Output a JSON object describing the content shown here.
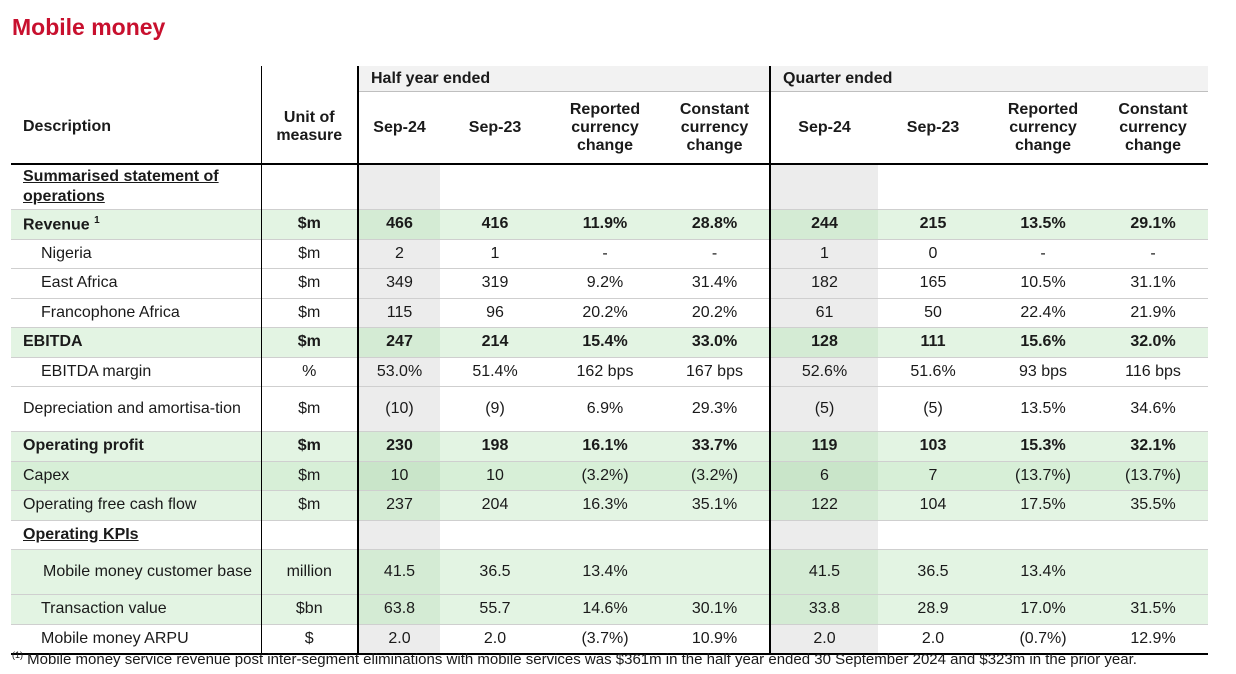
{
  "title": "Mobile money",
  "header": {
    "description": "Description",
    "unit": "Unit of measure",
    "group_half": "Half year ended",
    "group_quarter": "Quarter ended",
    "sep24": "Sep-24",
    "sep23": "Sep-23",
    "reported": "Reported currency change",
    "constant": "Constant currency change"
  },
  "rows": {
    "summary_heading": "Summarised statement of operations",
    "revenue": {
      "label": "Revenue",
      "sup": "1",
      "unit": "$m",
      "v": [
        "466",
        "416",
        "11.9%",
        "28.8%",
        "244",
        "215",
        "13.5%",
        "29.1%"
      ]
    },
    "nigeria": {
      "label": "Nigeria",
      "unit": "$m",
      "v": [
        "2",
        "1",
        "-",
        "-",
        "1",
        "0",
        "-",
        "-"
      ]
    },
    "east_africa": {
      "label": "East Africa",
      "unit": "$m",
      "v": [
        "349",
        "319",
        "9.2%",
        "31.4%",
        "182",
        "165",
        "10.5%",
        "31.1%"
      ]
    },
    "francophone": {
      "label": "Francophone Africa",
      "unit": "$m",
      "v": [
        "115",
        "96",
        "20.2%",
        "20.2%",
        "61",
        "50",
        "22.4%",
        "21.9%"
      ]
    },
    "ebitda": {
      "label": "EBITDA",
      "unit": "$m",
      "v": [
        "247",
        "214",
        "15.4%",
        "33.0%",
        "128",
        "111",
        "15.6%",
        "32.0%"
      ]
    },
    "ebitda_margin": {
      "label": "EBITDA margin",
      "unit": "%",
      "v": [
        "53.0%",
        "51.4%",
        "162 bps",
        "167 bps",
        "52.6%",
        "51.6%",
        "93 bps",
        "116 bps"
      ]
    },
    "depreciation": {
      "label": "Depreciation and amortisa-tion",
      "unit": "$m",
      "v": [
        "(10)",
        "(9)",
        "6.9%",
        "29.3%",
        "(5)",
        "(5)",
        "13.5%",
        "34.6%"
      ]
    },
    "operating_profit": {
      "label": "Operating profit",
      "unit": "$m",
      "v": [
        "230",
        "198",
        "16.1%",
        "33.7%",
        "119",
        "103",
        "15.3%",
        "32.1%"
      ]
    },
    "capex": {
      "label": "Capex",
      "unit": "$m",
      "v": [
        "10",
        "10",
        "(3.2%)",
        "(3.2%)",
        "6",
        "7",
        "(13.7%)",
        "(13.7%)"
      ]
    },
    "ofcf": {
      "label": "Operating free cash flow",
      "unit": "$m",
      "v": [
        "237",
        "204",
        "16.3%",
        "35.1%",
        "122",
        "104",
        "17.5%",
        "35.5%"
      ]
    },
    "kpi_heading": "Operating KPIs",
    "customer_base": {
      "label": "Mobile money customer base",
      "unit": "million",
      "v": [
        "41.5",
        "36.5",
        "13.4%",
        "",
        "41.5",
        "36.5",
        "13.4%",
        ""
      ]
    },
    "transaction_value": {
      "label": "Transaction value",
      "unit": "$bn",
      "v": [
        "63.8",
        "55.7",
        "14.6%",
        "30.1%",
        "33.8",
        "28.9",
        "17.0%",
        "31.5%"
      ]
    },
    "arpu": {
      "label": "Mobile money ARPU",
      "unit": "$",
      "v": [
        "2.0",
        "2.0",
        "(3.7%)",
        "10.9%",
        "2.0",
        "2.0",
        "(0.7%)",
        "12.9%"
      ]
    }
  },
  "footnote": {
    "marker": "(1)",
    "text": "Mobile money service revenue post inter-segment eliminations with mobile services was $361m in the half year ended 30 September 2024 and $323m in the prior year."
  },
  "colors": {
    "title_red": "#c8102e",
    "highlight_green": "#e3f4e3",
    "column_shade": "#ececec"
  }
}
